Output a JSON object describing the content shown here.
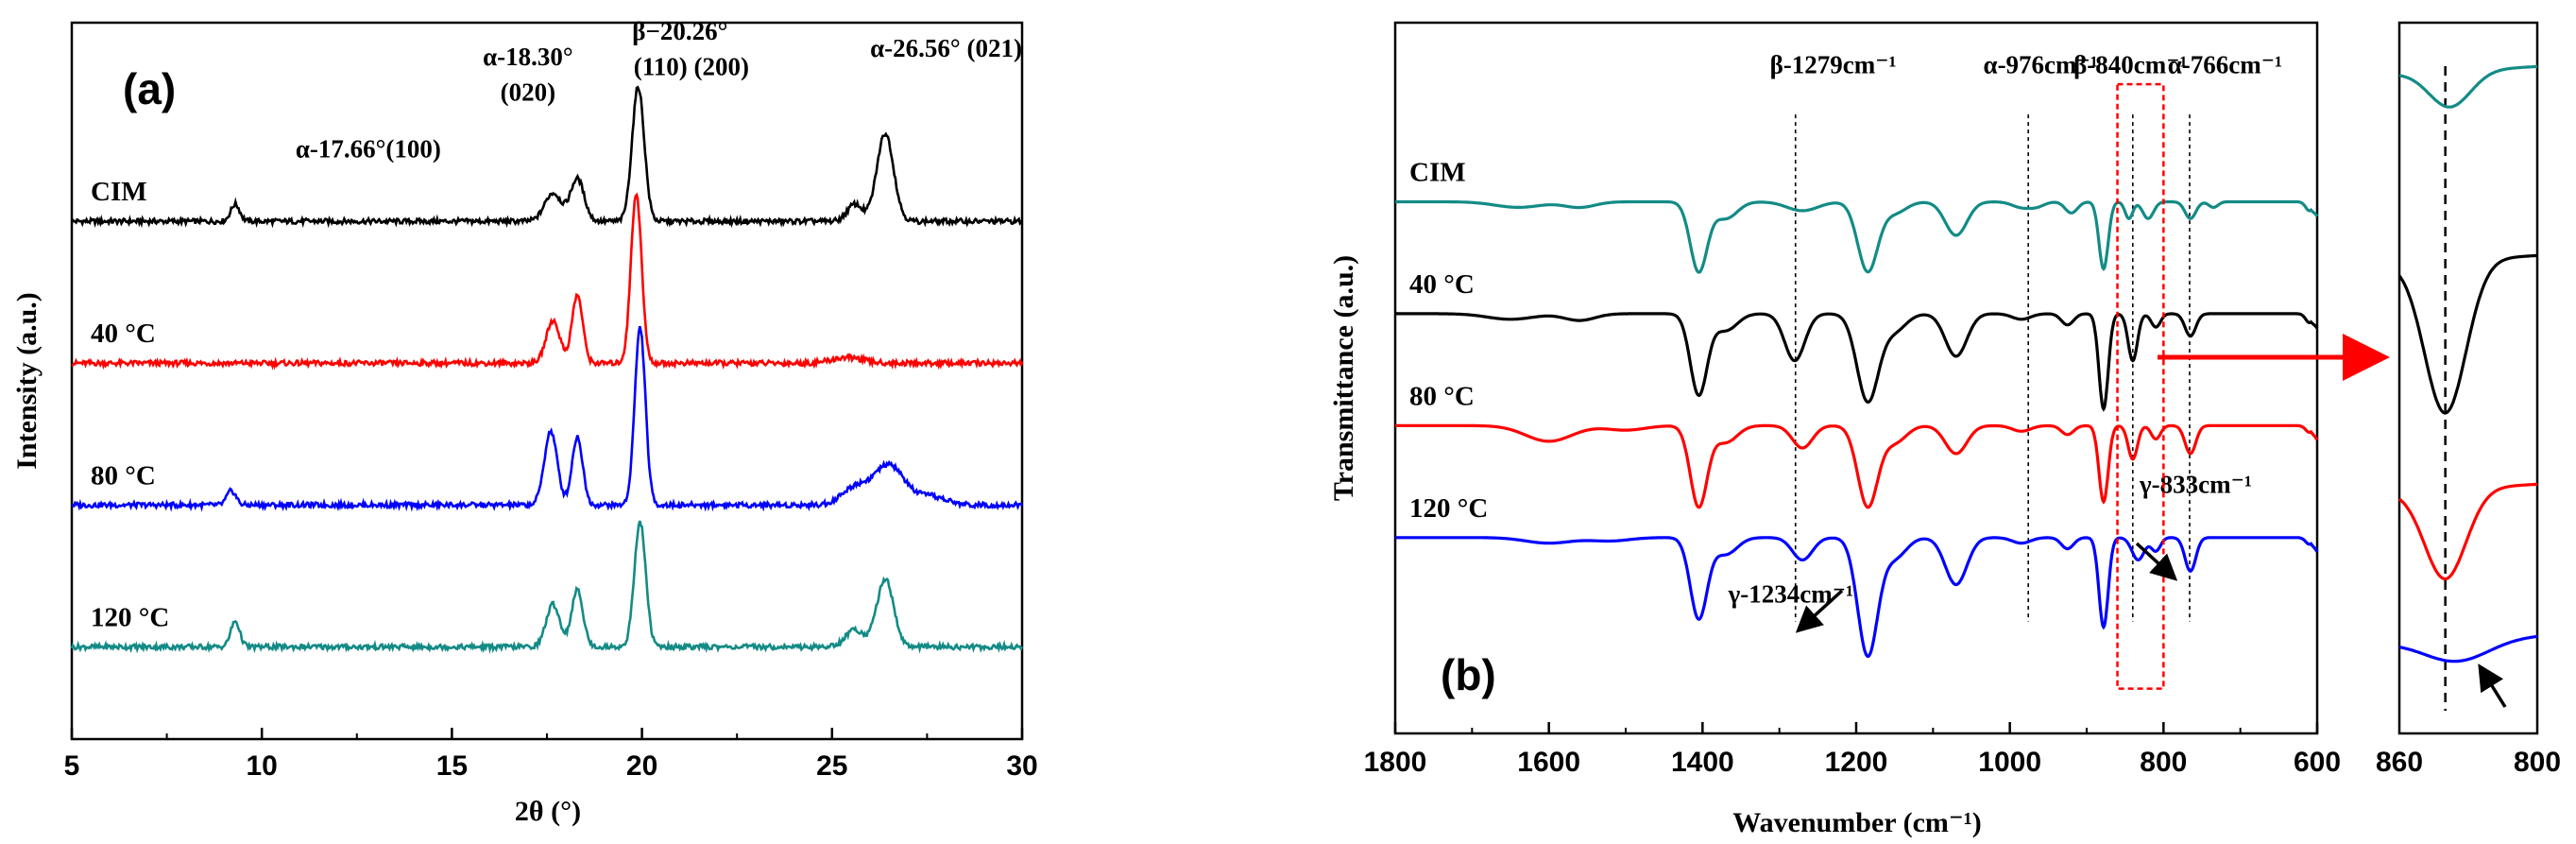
{
  "chart_data": [
    {
      "panel": "(a)",
      "type": "line",
      "xlabel": "2θ (°)",
      "ylabel": "Intensity (a.u.)",
      "xlim": [
        5,
        30
      ],
      "xticks": [
        "5",
        "10",
        "15",
        "20",
        "25",
        "30"
      ],
      "series": [
        {
          "name": "CIM",
          "color": "#000000",
          "offset": 3.0,
          "peaks": [
            [
              9.3,
              0.12,
              0.12
            ],
            [
              17.66,
              0.2,
              0.22
            ],
            [
              18.3,
              0.3,
              0.18
            ],
            [
              19.9,
              0.95,
              0.16
            ],
            [
              25.6,
              0.12,
              0.2
            ],
            [
              26.4,
              0.62,
              0.22
            ]
          ]
        },
        {
          "name": "40 °C",
          "color": "#ff0000",
          "offset": 2.0,
          "peaks": [
            [
              17.66,
              0.3,
              0.18
            ],
            [
              18.3,
              0.48,
              0.14
            ],
            [
              19.85,
              1.2,
              0.14
            ],
            [
              25.4,
              0.04,
              0.4
            ]
          ]
        },
        {
          "name": "80 °C",
          "color": "#0000ff",
          "offset": 1.0,
          "peaks": [
            [
              9.2,
              0.1,
              0.12
            ],
            [
              17.6,
              0.52,
              0.17
            ],
            [
              18.3,
              0.48,
              0.14
            ],
            [
              19.95,
              1.25,
              0.14
            ],
            [
              25.6,
              0.12,
              0.35
            ],
            [
              26.5,
              0.28,
              0.4
            ],
            [
              27.6,
              0.06,
              0.4
            ]
          ]
        },
        {
          "name": "120 °C",
          "color": "#138b86",
          "offset": 0.0,
          "peaks": [
            [
              9.3,
              0.18,
              0.12
            ],
            [
              17.66,
              0.3,
              0.18
            ],
            [
              18.3,
              0.4,
              0.15
            ],
            [
              19.95,
              0.88,
              0.15
            ],
            [
              25.6,
              0.12,
              0.25
            ],
            [
              26.4,
              0.48,
              0.22
            ]
          ]
        }
      ],
      "annotations": [
        {
          "text": "α-17.66°(100)",
          "x": 12.8,
          "y": 3.45
        },
        {
          "text": "α-18.30°",
          "x": 17.0,
          "y": 4.1
        },
        {
          "text": "(020)",
          "x": 17.0,
          "y": 3.85
        },
        {
          "text": "β−20.26°",
          "x": 21.0,
          "y": 4.28
        },
        {
          "text": "(110) (200)",
          "x": 21.3,
          "y": 4.03
        },
        {
          "text": "α-26.56°  (021)",
          "x": 28.0,
          "y": 4.16
        }
      ]
    },
    {
      "panel": "(b)",
      "type": "line",
      "xlabel": "Wavenumber (cm⁻¹)",
      "ylabel": "Transmittance (a.u.)",
      "xlim": [
        1800,
        600
      ],
      "xticks": [
        "1800",
        "1600",
        "1400",
        "1200",
        "1000",
        "800",
        "600"
      ],
      "series": [
        {
          "name": "CIM",
          "color": "#138b86",
          "offset": 3.0,
          "dips": [
            [
              1640,
              0.05,
              30
            ],
            [
              1560,
              0.05,
              20
            ],
            [
              1405,
              0.62,
              11
            ],
            [
              1370,
              0.15,
              15
            ],
            [
              1270,
              0.08,
              20
            ],
            [
              1185,
              0.62,
              13
            ],
            [
              1150,
              0.1,
              15
            ],
            [
              1070,
              0.3,
              14
            ],
            [
              985,
              0.05,
              12
            ],
            [
              965,
              0.04,
              10
            ],
            [
              920,
              0.1,
              8
            ],
            [
              878,
              0.6,
              6
            ],
            [
              845,
              0.15,
              5
            ],
            [
              820,
              0.15,
              7
            ],
            [
              765,
              0.15,
              7
            ],
            [
              735,
              0.05,
              6
            ],
            [
              610,
              0.08,
              5
            ]
          ]
        },
        {
          "name": "40 °C",
          "color": "#000000",
          "offset": 2.0,
          "dips": [
            [
              1650,
              0.05,
              30
            ],
            [
              1560,
              0.06,
              20
            ],
            [
              1405,
              0.72,
              11
            ],
            [
              1370,
              0.15,
              15
            ],
            [
              1280,
              0.42,
              13
            ],
            [
              1185,
              0.78,
              14
            ],
            [
              1150,
              0.15,
              15
            ],
            [
              1070,
              0.38,
              14
            ],
            [
              985,
              0.05,
              12
            ],
            [
              925,
              0.1,
              8
            ],
            [
              878,
              0.85,
              6
            ],
            [
              840,
              0.42,
              6
            ],
            [
              810,
              0.12,
              6
            ],
            [
              765,
              0.2,
              7
            ],
            [
              610,
              0.08,
              5
            ]
          ]
        },
        {
          "name": "80 °C",
          "color": "#ff0000",
          "offset": 1.0,
          "dips": [
            [
              1600,
              0.14,
              30
            ],
            [
              1500,
              0.04,
              25
            ],
            [
              1405,
              0.72,
              11
            ],
            [
              1370,
              0.15,
              15
            ],
            [
              1270,
              0.2,
              13
            ],
            [
              1185,
              0.72,
              13
            ],
            [
              1150,
              0.15,
              15
            ],
            [
              1070,
              0.25,
              14
            ],
            [
              985,
              0.05,
              12
            ],
            [
              925,
              0.08,
              8
            ],
            [
              878,
              0.68,
              6
            ],
            [
              840,
              0.3,
              6
            ],
            [
              810,
              0.12,
              6
            ],
            [
              765,
              0.25,
              7
            ],
            [
              610,
              0.06,
              5
            ]
          ]
        },
        {
          "name": "120 °C",
          "color": "#0000ff",
          "offset": 0.0,
          "dips": [
            [
              1600,
              0.05,
              30
            ],
            [
              1520,
              0.03,
              25
            ],
            [
              1405,
              0.72,
              11
            ],
            [
              1370,
              0.15,
              15
            ],
            [
              1270,
              0.2,
              13
            ],
            [
              1185,
              1.05,
              13
            ],
            [
              1150,
              0.18,
              15
            ],
            [
              1070,
              0.42,
              14
            ],
            [
              985,
              0.05,
              12
            ],
            [
              925,
              0.1,
              8
            ],
            [
              878,
              0.8,
              6
            ],
            [
              833,
              0.2,
              8
            ],
            [
              810,
              0.12,
              6
            ],
            [
              765,
              0.3,
              7
            ],
            [
              610,
              0.06,
              5
            ]
          ]
        }
      ],
      "reference_lines": [
        1279,
        976,
        840,
        766
      ],
      "annotations": [
        {
          "text": "β-1279cm⁻¹",
          "x": 1230,
          "y": 4.15
        },
        {
          "text": "α-976cm⁻¹",
          "x": 960,
          "y": 4.15
        },
        {
          "text": "β-840cm⁻¹",
          "x": 843,
          "y": 4.15
        },
        {
          "text": "α-766cm⁻¹",
          "x": 720,
          "y": 4.15
        },
        {
          "text": "γ-833cm⁻¹",
          "x": 758,
          "y": 0.4
        },
        {
          "text": "γ-1234cm⁻¹",
          "x": 1285,
          "y": -0.58
        }
      ],
      "highlight_box": [
        860,
        800
      ]
    },
    {
      "panel": "inset",
      "type": "line",
      "xlim": [
        860,
        800
      ],
      "xticks": [
        "860",
        "800"
      ],
      "reference_line": 840,
      "series": [
        {
          "name": "CIM",
          "color": "#138b86",
          "dip": [
            838,
            0.2,
            9
          ]
        },
        {
          "name": "40 °C",
          "color": "#000000",
          "dip": [
            840,
            0.85,
            9
          ]
        },
        {
          "name": "80 °C",
          "color": "#ff0000",
          "dip": [
            840,
            0.5,
            9
          ]
        },
        {
          "name": "120 °C",
          "color": "#0000ff",
          "dip": [
            835,
            0.12,
            14
          ]
        }
      ]
    }
  ]
}
